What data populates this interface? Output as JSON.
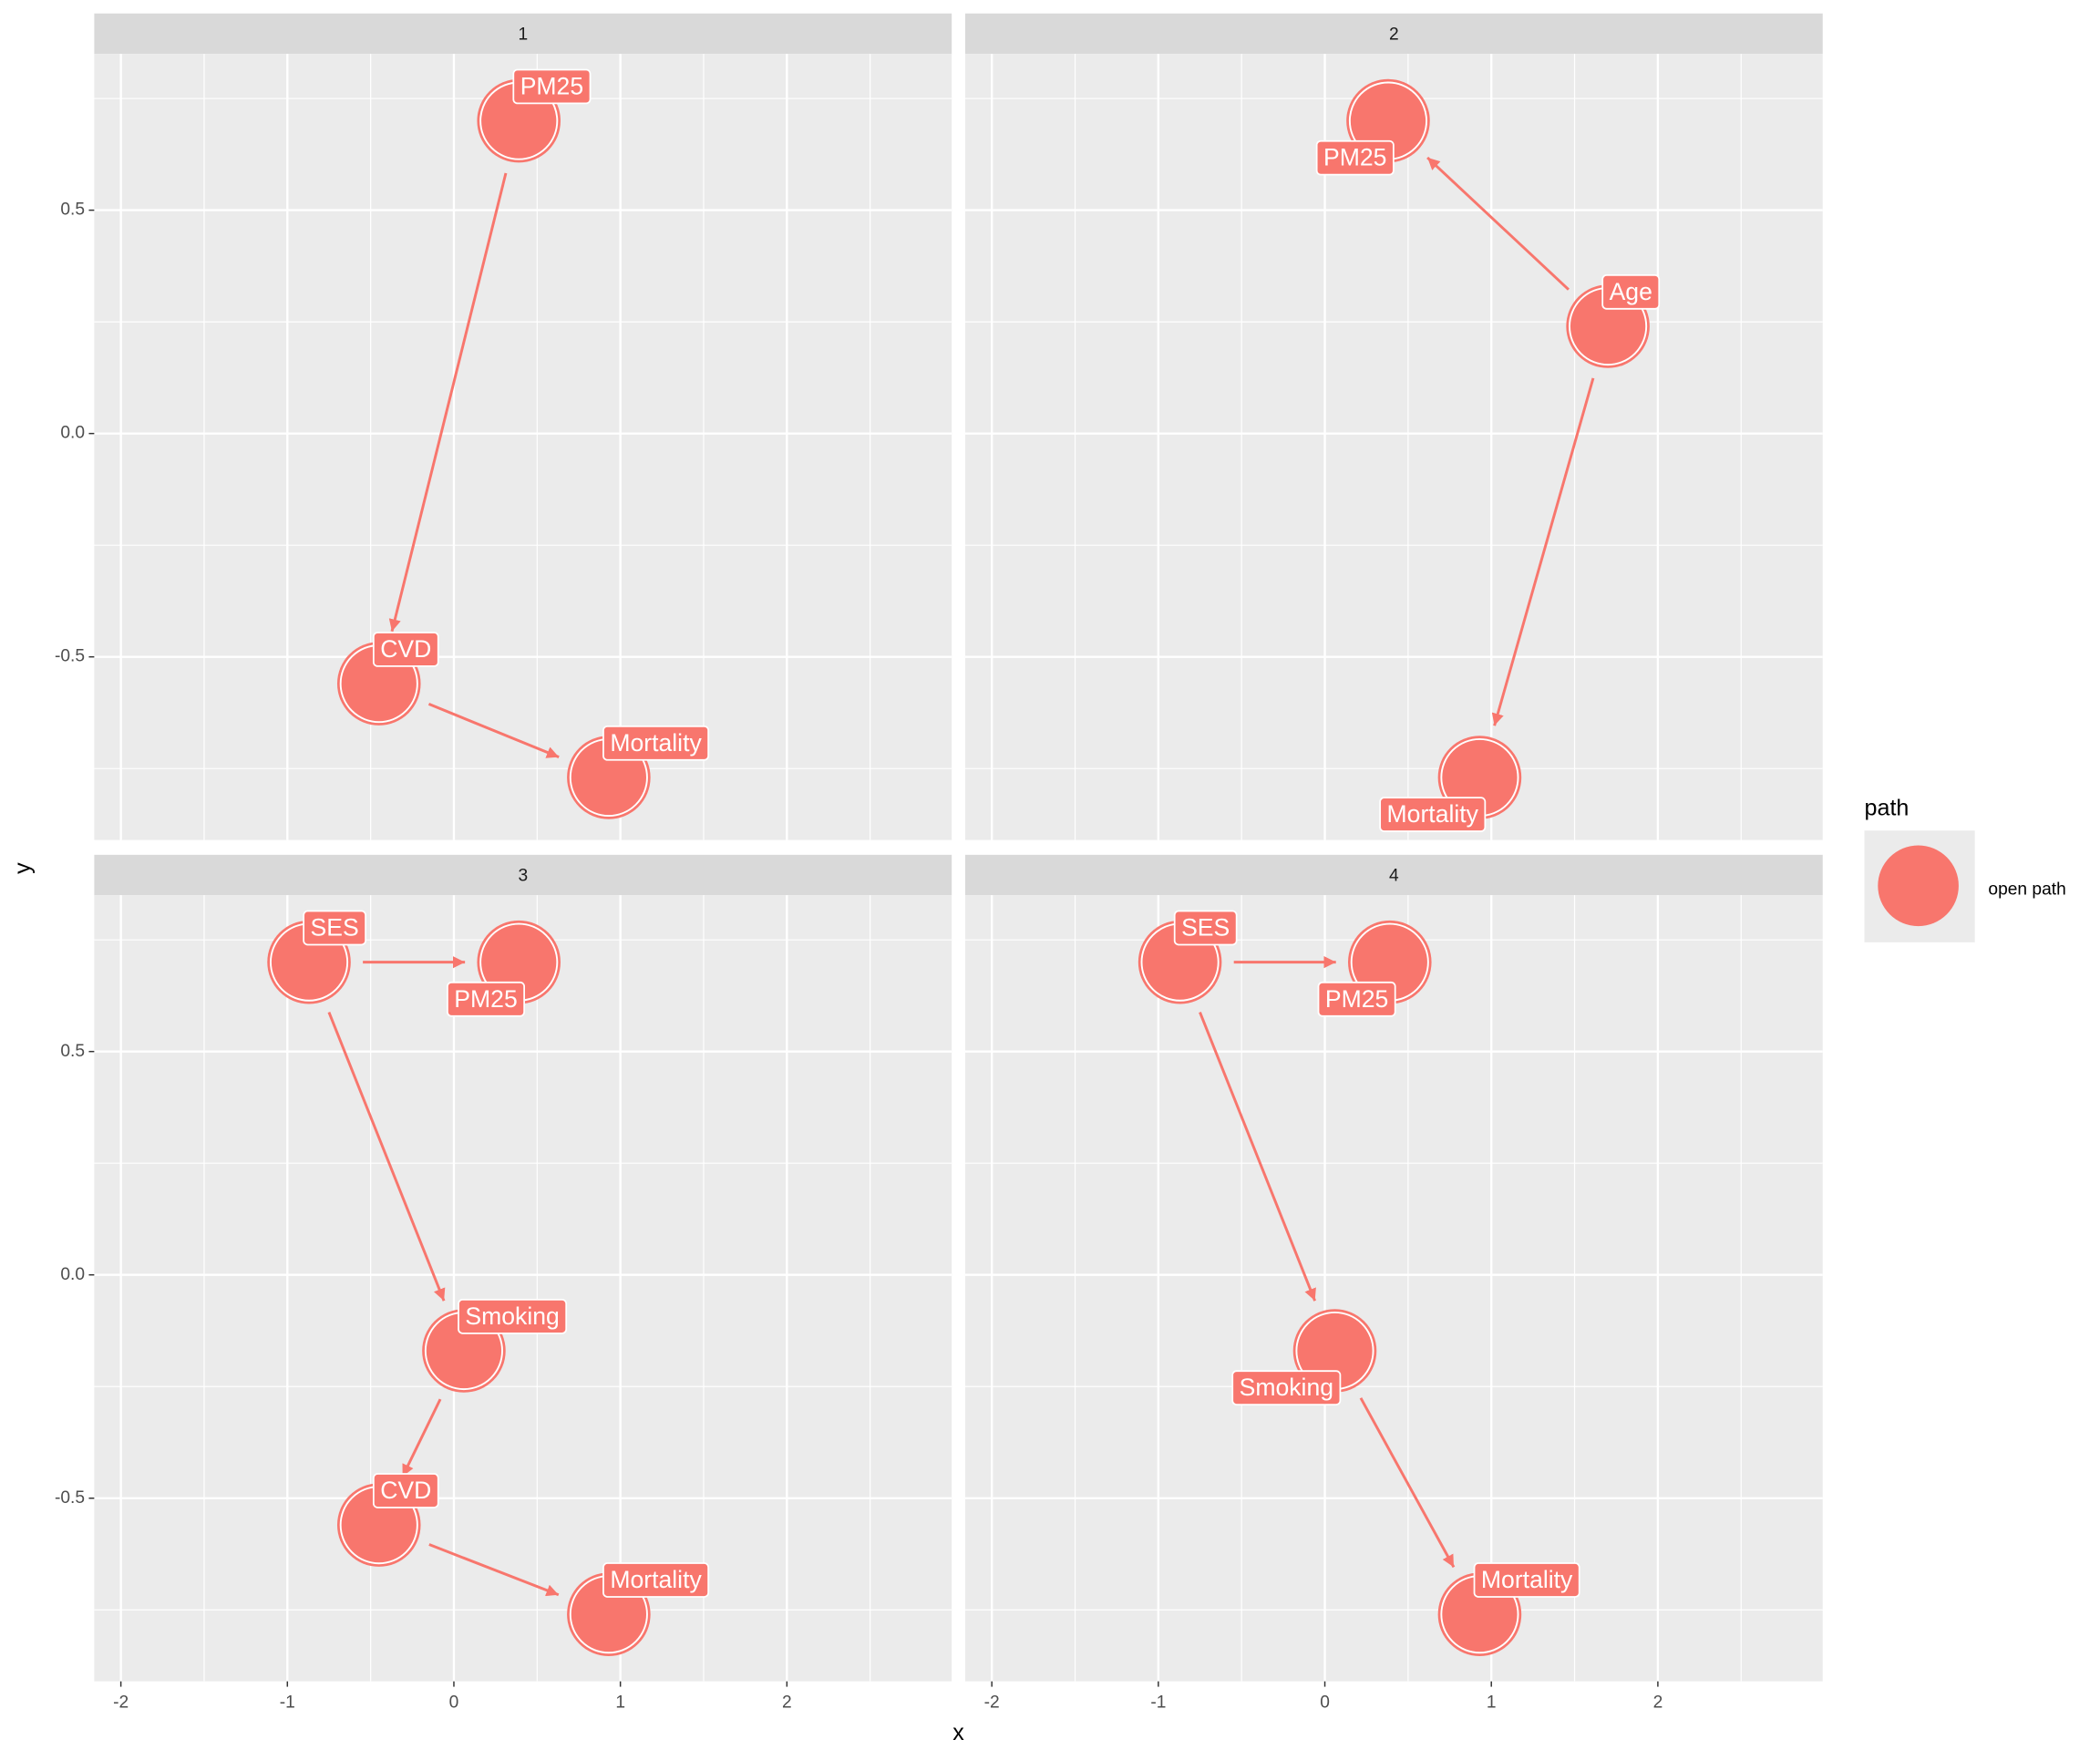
{
  "chart_data": [
    {
      "type": "dag",
      "title": "1",
      "color": "#F8766D",
      "grid": true,
      "xlim": [
        -2.16,
        2.99
      ],
      "ylim": [
        -0.91,
        0.85
      ],
      "xticks": [
        -2,
        -1,
        0,
        1,
        2
      ],
      "yticks": [
        -0.5,
        {
          "value": 0,
          "label": "0.0"
        },
        0.5
      ],
      "x_minor_ticks": [
        -1.5,
        -0.5,
        0.5,
        1.5,
        2.5
      ],
      "y_minor_ticks": [
        -0.75,
        -0.25,
        0.25,
        0.75
      ],
      "nodes": [
        {
          "label": "PM25",
          "x": 0.39,
          "y": 0.7
        },
        {
          "label": "CVD",
          "x": -0.45,
          "y": -0.56
        },
        {
          "label": "Mortality",
          "x": 0.93,
          "y": -0.77
        }
      ],
      "edges": [
        {
          "from": 0,
          "to": 1
        },
        {
          "from": 1,
          "to": 2
        }
      ]
    },
    {
      "type": "dag",
      "title": "2",
      "color": "#F8766D",
      "grid": true,
      "xlim": [
        -2.16,
        2.99
      ],
      "ylim": [
        -0.91,
        0.85
      ],
      "xticks": [
        -2,
        -1,
        0,
        1,
        2
      ],
      "yticks": [
        -0.5,
        {
          "value": 0,
          "label": "0.0"
        },
        0.5
      ],
      "x_minor_ticks": [
        -1.5,
        -0.5,
        0.5,
        1.5,
        2.5
      ],
      "y_minor_ticks": [
        -0.75,
        -0.25,
        0.25,
        0.75
      ],
      "nodes": [
        {
          "label": "PM25",
          "x": 0.38,
          "y": 0.7
        },
        {
          "label": "Age",
          "x": 1.7,
          "y": 0.24
        },
        {
          "label": "Mortality",
          "x": 0.93,
          "y": -0.77
        }
      ],
      "edges": [
        {
          "from": 1,
          "to": 0
        },
        {
          "from": 1,
          "to": 2
        }
      ]
    },
    {
      "type": "dag",
      "title": "3",
      "color": "#F8766D",
      "grid": true,
      "xlim": [
        -2.16,
        2.99
      ],
      "ylim": [
        -0.91,
        0.85
      ],
      "xticks": [
        -2,
        -1,
        0,
        1,
        2
      ],
      "yticks": [
        -0.5,
        {
          "value": 0,
          "label": "0.0"
        },
        0.5
      ],
      "x_minor_ticks": [
        -1.5,
        -0.5,
        0.5,
        1.5,
        2.5
      ],
      "y_minor_ticks": [
        -0.75,
        -0.25,
        0.25,
        0.75
      ],
      "nodes": [
        {
          "label": "SES",
          "x": -0.87,
          "y": 0.7
        },
        {
          "label": "PM25",
          "x": 0.39,
          "y": 0.7
        },
        {
          "label": "Smoking",
          "x": 0.06,
          "y": -0.17
        },
        {
          "label": "CVD",
          "x": -0.45,
          "y": -0.56
        },
        {
          "label": "Mortality",
          "x": 0.93,
          "y": -0.76
        }
      ],
      "edges": [
        {
          "from": 0,
          "to": 1
        },
        {
          "from": 0,
          "to": 2
        },
        {
          "from": 2,
          "to": 3
        },
        {
          "from": 3,
          "to": 4
        }
      ]
    },
    {
      "type": "dag",
      "title": "4",
      "color": "#F8766D",
      "grid": true,
      "xlim": [
        -2.16,
        2.99
      ],
      "ylim": [
        -0.91,
        0.85
      ],
      "xticks": [
        -2,
        -1,
        0,
        1,
        2
      ],
      "yticks": [
        -0.5,
        {
          "value": 0,
          "label": "0.0"
        },
        0.5
      ],
      "x_minor_ticks": [
        -1.5,
        -0.5,
        0.5,
        1.5,
        2.5
      ],
      "y_minor_ticks": [
        -0.75,
        -0.25,
        0.25,
        0.75
      ],
      "nodes": [
        {
          "label": "SES",
          "x": -0.87,
          "y": 0.7
        },
        {
          "label": "PM25",
          "x": 0.39,
          "y": 0.7
        },
        {
          "label": "Smoking",
          "x": 0.06,
          "y": -0.17
        },
        {
          "label": "Mortality",
          "x": 0.93,
          "y": -0.76
        }
      ],
      "edges": [
        {
          "from": 0,
          "to": 1
        },
        {
          "from": 0,
          "to": 2
        },
        {
          "from": 2,
          "to": 3
        }
      ]
    }
  ],
  "axes": {
    "xlabel": "x",
    "ylabel": "y"
  },
  "legend": {
    "title": "path",
    "items": [
      {
        "name": "open path",
        "color": "#F8766D"
      }
    ]
  }
}
